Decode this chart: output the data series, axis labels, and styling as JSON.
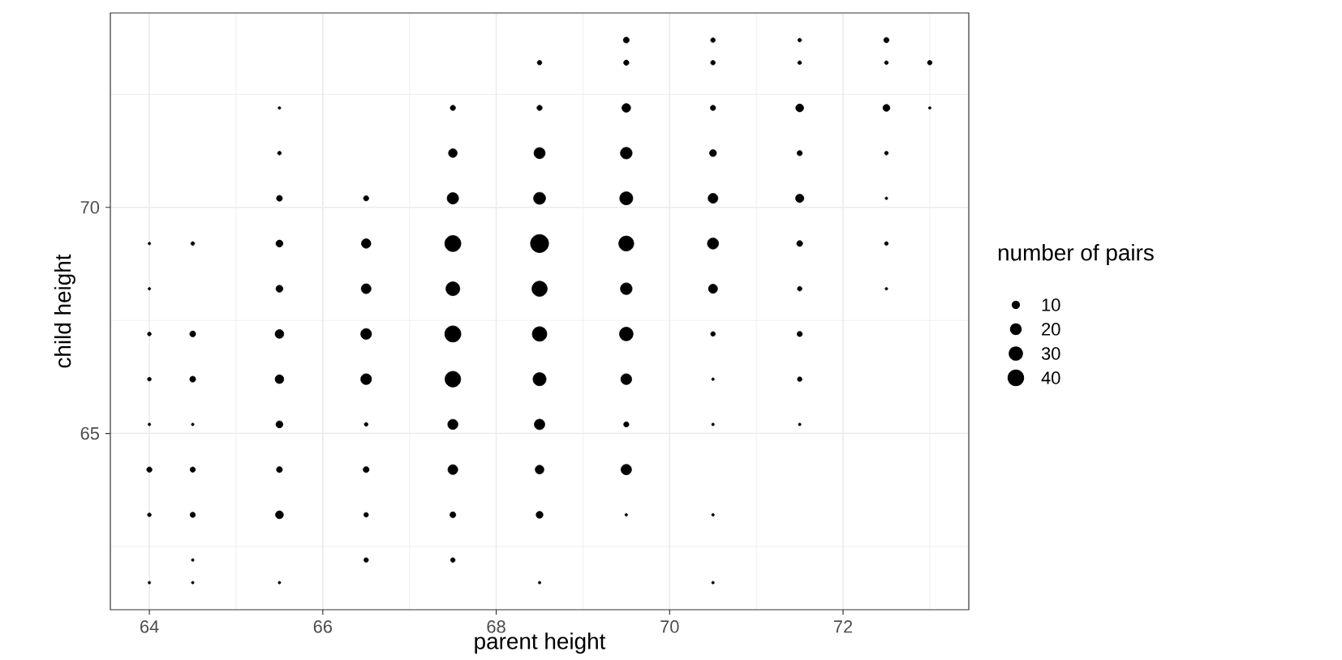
{
  "chart_data": {
    "type": "bubble",
    "xlabel": "parent height",
    "ylabel": "child height",
    "legend_title": "number of pairs",
    "grid": true,
    "marker": "circle",
    "xlim": [
      63.55,
      73.45
    ],
    "ylim": [
      61.1,
      74.3
    ],
    "xticks": [
      64,
      {
        "value": 65,
        "label": null
      },
      66,
      {
        "value": 67,
        "label": null
      },
      68,
      {
        "value": 69,
        "label": null
      },
      70,
      {
        "value": 71,
        "label": null
      },
      72,
      {
        "value": 73,
        "label": null
      }
    ],
    "yticks": [
      {
        "value": 62.5,
        "label": null
      },
      65,
      {
        "value": 67.5,
        "label": null
      },
      70,
      {
        "value": 72.5,
        "label": null
      }
    ],
    "size_legend": [
      10,
      20,
      30,
      40
    ],
    "series": [
      {
        "color": "#000000",
        "x": [
          64,
          64.5,
          65.5,
          68.5,
          70.5,
          64.5,
          66.5,
          67.5,
          64,
          64.5,
          65.5,
          66.5,
          67.5,
          68.5,
          69.5,
          70.5,
          64,
          64.5,
          65.5,
          66.5,
          67.5,
          68.5,
          69.5,
          64,
          64.5,
          65.5,
          66.5,
          67.5,
          68.5,
          69.5,
          70.5,
          71.5,
          64,
          64.5,
          65.5,
          66.5,
          67.5,
          68.5,
          69.5,
          70.5,
          71.5,
          64,
          64.5,
          65.5,
          66.5,
          67.5,
          68.5,
          69.5,
          70.5,
          71.5,
          64,
          65.5,
          66.5,
          67.5,
          68.5,
          69.5,
          70.5,
          71.5,
          72.5,
          64,
          64.5,
          65.5,
          66.5,
          67.5,
          68.5,
          69.5,
          70.5,
          71.5,
          72.5,
          65.5,
          66.5,
          67.5,
          68.5,
          69.5,
          70.5,
          71.5,
          72.5,
          65.5,
          67.5,
          68.5,
          69.5,
          70.5,
          71.5,
          72.5,
          65.5,
          67.5,
          68.5,
          69.5,
          70.5,
          71.5,
          72.5,
          73,
          68.5,
          69.5,
          70.5,
          71.5,
          72.5,
          73,
          69.5,
          70.5,
          71.5,
          72.5
        ],
        "values": [
          61.7,
          61.7,
          61.7,
          61.7,
          61.7,
          62.2,
          62.2,
          62.2,
          63.2,
          63.2,
          63.2,
          63.2,
          63.2,
          63.2,
          63.2,
          63.2,
          64.2,
          64.2,
          64.2,
          64.2,
          64.2,
          64.2,
          64.2,
          65.2,
          65.2,
          65.2,
          65.2,
          65.2,
          65.2,
          65.2,
          65.2,
          65.2,
          66.2,
          66.2,
          66.2,
          66.2,
          66.2,
          66.2,
          66.2,
          66.2,
          66.2,
          67.2,
          67.2,
          67.2,
          67.2,
          67.2,
          67.2,
          67.2,
          67.2,
          67.2,
          68.2,
          68.2,
          68.2,
          68.2,
          68.2,
          68.2,
          68.2,
          68.2,
          68.2,
          69.2,
          69.2,
          69.2,
          69.2,
          69.2,
          69.2,
          69.2,
          69.2,
          69.2,
          69.2,
          70.2,
          70.2,
          70.2,
          70.2,
          70.2,
          70.2,
          70.2,
          70.2,
          71.2,
          71.2,
          71.2,
          71.2,
          71.2,
          71.2,
          71.2,
          72.2,
          72.2,
          72.2,
          72.2,
          72.2,
          72.2,
          72.2,
          72.2,
          73.2,
          73.2,
          73.2,
          73.2,
          73.2,
          73.2,
          73.7,
          73.7,
          73.7,
          73.7
        ],
        "sizes": [
          1,
          1,
          1,
          1,
          1,
          1,
          3,
          3,
          2,
          4,
          9,
          3,
          5,
          7,
          1,
          1,
          4,
          4,
          5,
          5,
          14,
          11,
          16,
          1,
          1,
          7,
          2,
          15,
          16,
          4,
          1,
          1,
          2,
          5,
          11,
          17,
          36,
          25,
          17,
          1,
          3,
          2,
          5,
          11,
          17,
          38,
          31,
          27,
          3,
          4,
          1,
          7,
          14,
          28,
          34,
          20,
          12,
          3,
          1,
          1,
          2,
          7,
          13,
          38,
          48,
          33,
          18,
          5,
          2,
          5,
          4,
          19,
          21,
          25,
          14,
          10,
          1,
          2,
          11,
          18,
          20,
          7,
          4,
          2,
          1,
          4,
          4,
          11,
          4,
          9,
          7,
          1,
          3,
          4,
          3,
          2,
          2,
          3,
          5,
          3,
          2,
          4
        ]
      }
    ]
  }
}
